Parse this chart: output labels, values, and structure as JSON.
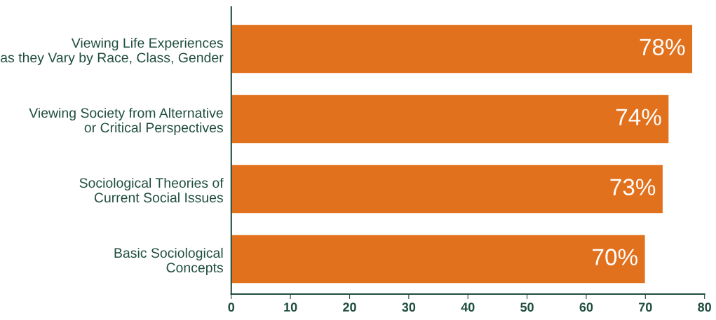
{
  "chart_data": {
    "type": "bar",
    "orientation": "horizontal",
    "categories": [
      "Viewing Life Experiences\nas they Vary by Race, Class, Gender",
      "Viewing Society from Alternative\nor Critical Perspectives",
      "Sociological Theories of\nCurrent Social Issues",
      "Basic Sociological\nConcepts"
    ],
    "values": [
      78,
      74,
      73,
      70
    ],
    "value_labels": [
      "78%",
      "74%",
      "73%",
      "70%"
    ],
    "color": "#e2711d",
    "xlim": [
      0,
      80
    ],
    "xticks": [
      0,
      10,
      20,
      30,
      40,
      50,
      60,
      70,
      80
    ],
    "grid": false,
    "legend": false
  }
}
